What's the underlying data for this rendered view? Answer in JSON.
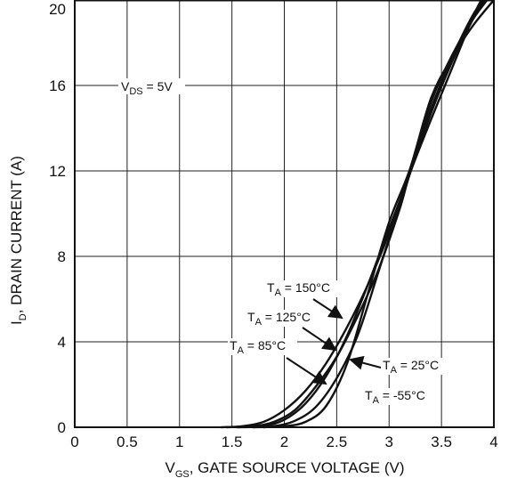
{
  "chart_data": {
    "type": "line",
    "xlabel": {
      "main": "V",
      "sub": "GS",
      "rest": ", GATE SOURCE VOLTAGE (V)"
    },
    "ylabel": {
      "main": "I",
      "sub": "D",
      "rest": ", DRAIN CURRENT (A)"
    },
    "xlim": [
      0,
      4
    ],
    "ylim": [
      0,
      20
    ],
    "xticks": [
      "0",
      "0.5",
      "1",
      "1.5",
      "2",
      "2.5",
      "3",
      "3.5",
      "4"
    ],
    "yticks": [
      "0",
      "4",
      "8",
      "12",
      "16",
      "20"
    ],
    "grid": true,
    "condition": {
      "main": "V",
      "sub": "DS",
      "rest": " = 5V"
    },
    "series": [
      {
        "name": {
          "main": "T",
          "sub": "A",
          "rest": " = 150°C"
        },
        "x": [
          1.4,
          1.6,
          1.8,
          2.0,
          2.2,
          2.4,
          2.6,
          2.8,
          3.0,
          3.2,
          3.4,
          3.6,
          3.8,
          3.88
        ],
        "y": [
          0.0,
          0.05,
          0.25,
          0.8,
          1.7,
          3.0,
          4.7,
          6.7,
          9.1,
          11.9,
          14.4,
          16.8,
          19.2,
          20.0
        ]
      },
      {
        "name": {
          "main": "T",
          "sub": "A",
          "rest": " = 125°C"
        },
        "x": [
          1.45,
          1.7,
          1.9,
          2.1,
          2.3,
          2.5,
          2.7,
          2.9,
          3.1,
          3.2,
          3.4,
          3.6,
          3.8,
          3.91
        ],
        "y": [
          0.0,
          0.05,
          0.25,
          0.8,
          1.9,
          3.3,
          5.2,
          7.4,
          10.2,
          11.9,
          14.7,
          17.1,
          19.1,
          20.0
        ]
      },
      {
        "name": {
          "main": "T",
          "sub": "A",
          "rest": " = 85°C"
        },
        "x": [
          1.55,
          1.8,
          2.0,
          2.2,
          2.4,
          2.6,
          2.8,
          3.0,
          3.2,
          3.4,
          3.6,
          3.8,
          3.96
        ],
        "y": [
          0.0,
          0.05,
          0.35,
          1.1,
          2.4,
          4.3,
          6.7,
          9.3,
          11.9,
          14.9,
          17.3,
          19.3,
          20.4
        ]
      },
      {
        "name": {
          "main": "T",
          "sub": "A",
          "rest": " = 25°C"
        },
        "x": [
          1.7,
          1.9,
          2.1,
          2.3,
          2.5,
          2.7,
          2.9,
          3.1,
          3.2,
          3.4,
          3.6,
          3.8,
          4.0
        ],
        "y": [
          0.0,
          0.05,
          0.3,
          0.95,
          2.3,
          4.3,
          7.3,
          10.4,
          11.9,
          15.2,
          17.4,
          19.1,
          20.4
        ]
      },
      {
        "name": {
          "main": "T",
          "sub": "A",
          "rest": " = -55°C"
        },
        "x": [
          1.8,
          2.0,
          2.2,
          2.4,
          2.6,
          2.8,
          3.0,
          3.2,
          3.4,
          3.6,
          3.8,
          4.0
        ],
        "y": [
          0.0,
          0.05,
          0.25,
          1.0,
          3.0,
          6.3,
          9.6,
          12.1,
          15.4,
          17.3,
          18.8,
          20.0
        ]
      }
    ]
  }
}
